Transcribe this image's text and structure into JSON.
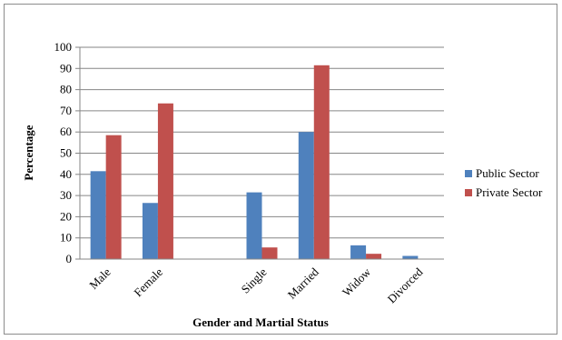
{
  "chart_data": {
    "type": "bar",
    "categories": [
      "Male",
      "Female",
      "",
      "Single",
      "Married",
      "Widow",
      "Divorced"
    ],
    "series": [
      {
        "name": "Public Sector",
        "color": "#4f81bd",
        "values": [
          41.5,
          26.5,
          null,
          31.5,
          60,
          6.5,
          1.5
        ]
      },
      {
        "name": "Private Sector",
        "color": "#c0504d",
        "values": [
          58.5,
          73.5,
          null,
          5.5,
          91.5,
          2.5,
          null
        ]
      }
    ],
    "title": "",
    "xlabel": "Gender and Martial Status",
    "ylabel": "Percentage",
    "ylim": [
      0,
      100
    ],
    "yticks": [
      0,
      10,
      20,
      30,
      40,
      50,
      60,
      70,
      80,
      90,
      100
    ],
    "grid": true,
    "legend_position": "right"
  }
}
